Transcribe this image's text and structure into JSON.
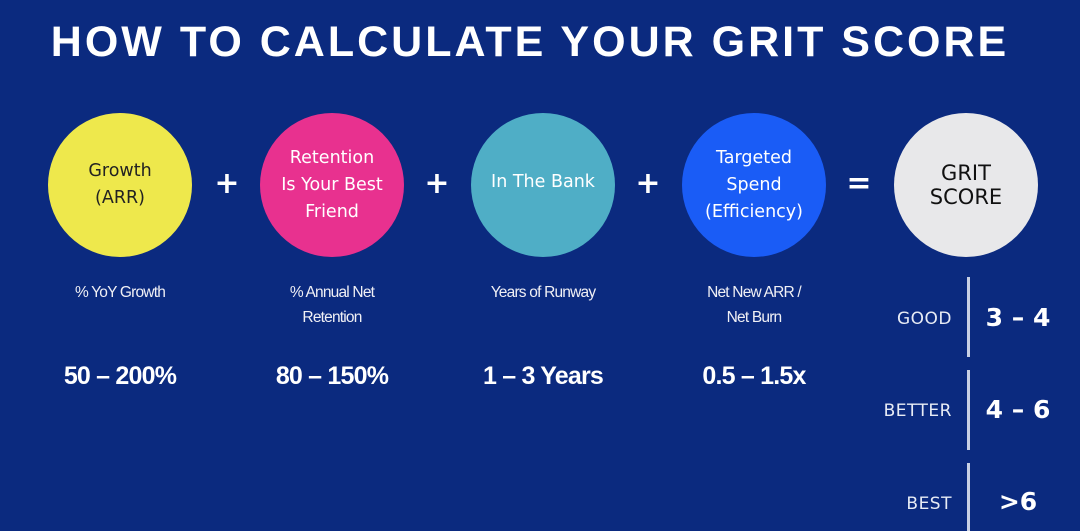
{
  "title": "HOW TO CALCULATE YOUR GRIT SCORE",
  "colors": {
    "background": "#0b2a7f",
    "growth": "#eee84c",
    "retention": "#e8318f",
    "bank": "#4faec6",
    "spend": "#1a5cf6",
    "grit": "#e8e8ea"
  },
  "factors": [
    {
      "name": "Growth\n(ARR)",
      "metric": "% YoY Growth",
      "range": "50 – 200%"
    },
    {
      "name": "Retention\nIs Your Best\nFriend",
      "metric": "% Annual Net\nRetention",
      "range": "80 – 150%"
    },
    {
      "name": "In The Bank",
      "metric": "Years of Runway",
      "range": "1 – 3 Years"
    },
    {
      "name": "Targeted\nSpend\n(Efficiency)",
      "metric": "Net New ARR /\nNet Burn",
      "range": "0.5 – 1.5x"
    }
  ],
  "operators": [
    "+",
    "+",
    "+",
    "="
  ],
  "result": {
    "name": "GRIT\nSCORE"
  },
  "tiers": [
    {
      "label": "GOOD",
      "range": "3 – 4"
    },
    {
      "label": "BETTER",
      "range": "4 – 6"
    },
    {
      "label": "BEST",
      "range": ">6"
    }
  ]
}
